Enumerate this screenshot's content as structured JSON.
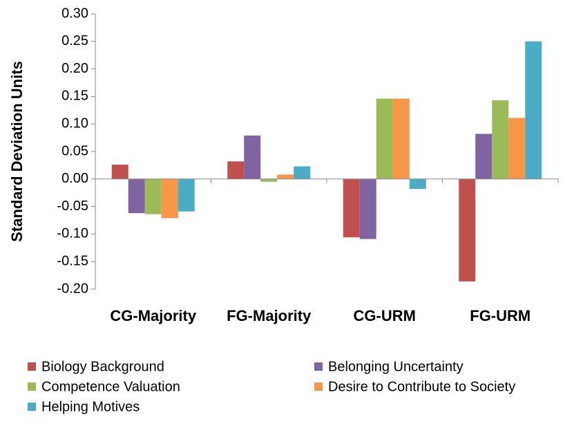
{
  "chart_data": {
    "type": "bar",
    "y_label": "Standard Deviation Units",
    "categories": [
      "CG-Majority",
      "FG-Majority",
      "CG-URM",
      "FG-URM"
    ],
    "series": [
      {
        "name": "Biology Background",
        "color": "#c0504d",
        "values": [
          0.026,
          0.032,
          -0.106,
          -0.186
        ]
      },
      {
        "name": "Belonging Uncertainty",
        "color": "#8064a2",
        "values": [
          -0.062,
          0.079,
          -0.109,
          0.082
        ]
      },
      {
        "name": "Competence Valuation",
        "color": "#9bbb59",
        "values": [
          -0.064,
          -0.005,
          0.146,
          0.143
        ]
      },
      {
        "name": "Desire to Contribute to Society",
        "color": "#f79646",
        "values": [
          -0.071,
          0.008,
          0.146,
          0.111
        ]
      },
      {
        "name": "Helping Motives",
        "color": "#4bacc6",
        "values": [
          -0.059,
          0.023,
          -0.018,
          0.25
        ]
      }
    ],
    "ylim": [
      -0.2,
      0.3
    ],
    "yticks": [
      {
        "value": 0.3,
        "label": "0.30"
      },
      {
        "value": 0.25,
        "label": "0.25"
      },
      {
        "value": 0.2,
        "label": "0.20"
      },
      {
        "value": 0.15,
        "label": "0.15"
      },
      {
        "value": 0.1,
        "label": "0.10"
      },
      {
        "value": 0.05,
        "label": "0.05"
      },
      {
        "value": 0,
        "label": "0.00"
      },
      {
        "value": -0.05,
        "label": "-0.05"
      },
      {
        "value": -0.1,
        "label": "-0.10"
      },
      {
        "value": -0.15,
        "label": "-0.15"
      },
      {
        "value": -0.2,
        "label": "-0.20"
      }
    ],
    "grid": false,
    "legend": "bottom"
  }
}
